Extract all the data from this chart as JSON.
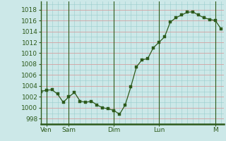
{
  "x_values": [
    0,
    1,
    2,
    3,
    4,
    5,
    6,
    7,
    8,
    9,
    10,
    11,
    12,
    13,
    14,
    15,
    16,
    17,
    18,
    19,
    20,
    21,
    22,
    23,
    24,
    25,
    26,
    27,
    28,
    29,
    30,
    31,
    32
  ],
  "y_values": [
    1003.0,
    1003.2,
    1003.3,
    1002.5,
    1001.0,
    1002.0,
    1002.8,
    1001.2,
    1001.0,
    1001.2,
    1000.5,
    1000.0,
    999.8,
    999.5,
    998.8,
    1000.5,
    1003.8,
    1007.5,
    1008.8,
    1009.0,
    1011.0,
    1012.0,
    1013.0,
    1015.7,
    1016.5,
    1017.0,
    1017.5,
    1017.6,
    1017.0,
    1016.5,
    1016.2,
    1016.0,
    1014.5
  ],
  "day_labels": [
    "Ven",
    "Sam",
    "Dim",
    "Lun",
    "M"
  ],
  "day_positions": [
    1,
    5,
    13,
    21,
    31
  ],
  "yticks": [
    998,
    1000,
    1002,
    1004,
    1006,
    1008,
    1010,
    1012,
    1014,
    1016,
    1018
  ],
  "ylim": [
    997.0,
    1019.5
  ],
  "xlim": [
    0,
    32.5
  ],
  "line_color": "#2d5a1b",
  "marker_color": "#2d5a1b",
  "bg_color": "#cce8e8",
  "grid_color_major": "#d4a0a0",
  "grid_color_minor": "#99cccc",
  "axis_color": "#2d5a1b",
  "tick_label_color": "#2d5a1b",
  "font_size": 6.5
}
